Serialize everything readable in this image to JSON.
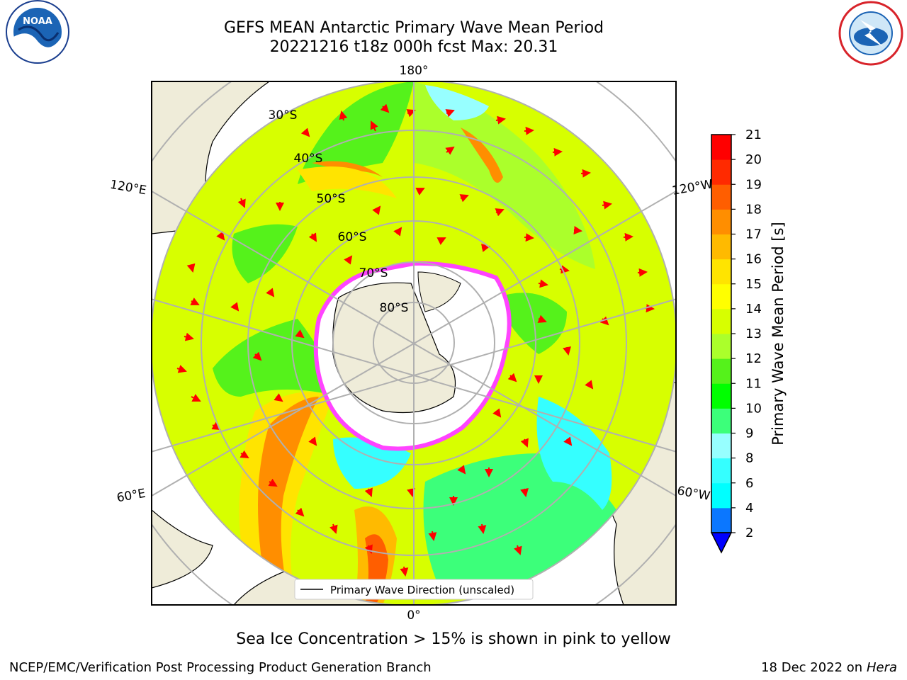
{
  "title_line1": "GEFS MEAN Antarctic Primary Wave Mean Period",
  "title_line2": "20221216 t18z 000h fcst   Max: 20.31",
  "logos": {
    "left": "noaa-logo",
    "right": "national-weather-service-logo"
  },
  "map": {
    "projection": "south-polar-stereographic",
    "longitude_labels": {
      "top": "180°",
      "bottom": "0°",
      "left_upper": "120°E",
      "left_lower": "60°E",
      "right_upper": "120°W",
      "right_lower": "60°W"
    },
    "latitude_labels": [
      "30°S",
      "40°S",
      "50°S",
      "60°S",
      "70°S",
      "80°S"
    ],
    "legend": "Primary Wave Direction (unscaled)",
    "arrow_color": "#ff0000",
    "land_color": "#efecd9",
    "sea_ice_colors": [
      "#ff44ff",
      "#ffa8a8",
      "#ffff80"
    ]
  },
  "colorbar": {
    "label": "Primary Wave Mean Period [s]",
    "ticks": [
      "2",
      "4",
      "6",
      "8",
      "9",
      "10",
      "11",
      "12",
      "13",
      "14",
      "15",
      "16",
      "17",
      "18",
      "19",
      "20",
      "21"
    ],
    "colors": [
      "#0b77ff",
      "#00ffff",
      "#35ffff",
      "#97ffff",
      "#3cff7a",
      "#00ff00",
      "#55f21b",
      "#abff2b",
      "#d7ff00",
      "#ffff00",
      "#ffe400",
      "#ffba00",
      "#ff8e00",
      "#ff5e00",
      "#ff2a00",
      "#ff0000"
    ],
    "extend_color": "#0000ff"
  },
  "footer": {
    "note": "Sea Ice Concentration > 15% is shown in pink to yellow",
    "left": "NCEP/EMC/Verification Post Processing Product Generation Branch",
    "right_date": "18 Dec 2022 on",
    "right_host": "Hera"
  }
}
